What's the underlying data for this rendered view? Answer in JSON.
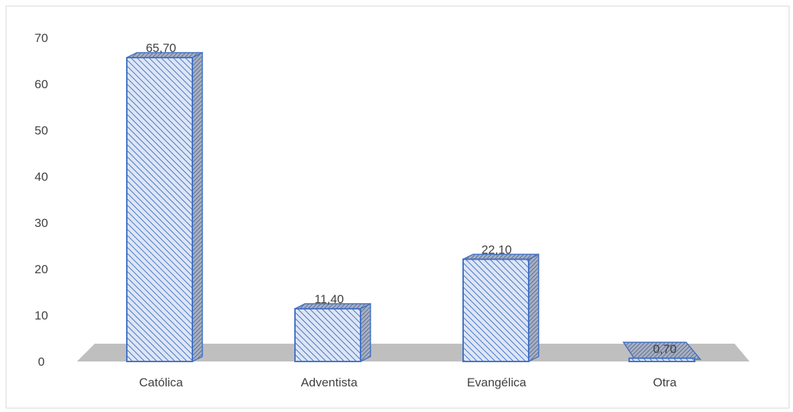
{
  "chart_data": {
    "type": "bar",
    "style": "3d-column",
    "categories": [
      "Católica",
      "Adventista",
      "Evangélica",
      "Otra"
    ],
    "values": [
      65.7,
      11.4,
      22.1,
      0.7
    ],
    "data_labels": [
      "65,70",
      "11,40",
      "22,10",
      "0,70"
    ],
    "y_ticks": [
      "0",
      "10",
      "20",
      "30",
      "40",
      "50",
      "60",
      "70"
    ],
    "ylim": [
      0,
      70
    ],
    "title": "",
    "xlabel": "",
    "ylabel": "",
    "grid": false,
    "legend": "none",
    "colors": {
      "bar_fill": "#dde6f6",
      "bar_hatch": "#4472c4",
      "bar_edge": "#4472c4",
      "bar_side": "#8c96a8",
      "floor": "#bfbfbf",
      "text": "#404040"
    }
  }
}
